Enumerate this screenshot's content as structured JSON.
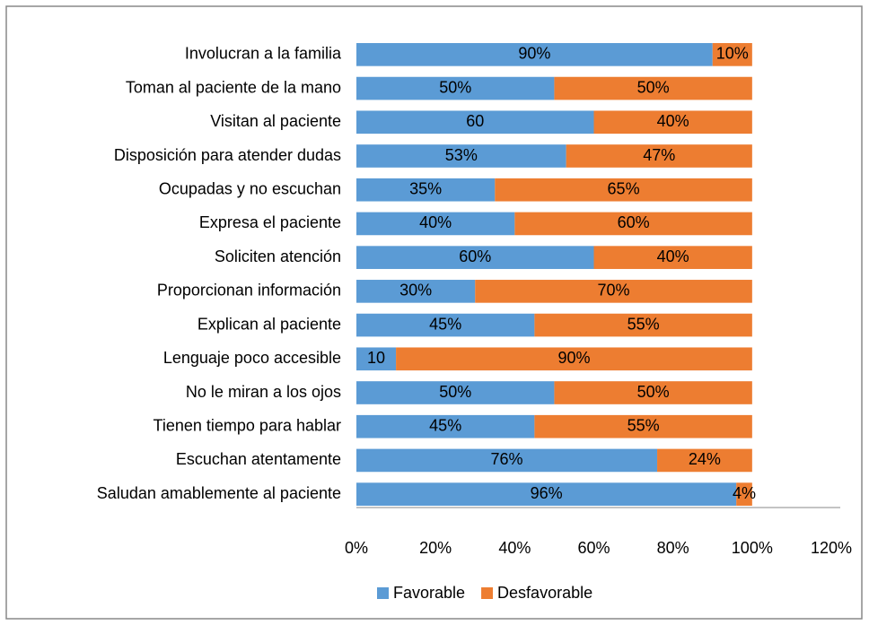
{
  "chart_data": {
    "type": "stacked_bar",
    "orientation": "horizontal",
    "categories": [
      "Involucran a la familia",
      "Toman al paciente de la mano",
      "Visitan al paciente",
      "Disposición para atender dudas",
      "Ocupadas y no escuchan",
      "Expresa el paciente",
      "Soliciten atención",
      "Proporcionan información",
      "Explican al paciente",
      "Lenguaje poco accesible",
      "No le miran a los ojos",
      "Tienen tiempo para hablar",
      "Escuchan atentamente",
      "Saludan amablemente al paciente"
    ],
    "series": [
      {
        "name": "Favorable",
        "color": "#5b9bd5",
        "values": [
          90,
          50,
          60,
          53,
          35,
          40,
          60,
          30,
          45,
          10,
          50,
          45,
          76,
          96
        ],
        "value_labels": [
          "90%",
          "50%",
          "60",
          "53%",
          "35%",
          "40%",
          "60%",
          "30%",
          "45%",
          "10",
          "50%",
          "45%",
          "76%",
          "96%"
        ]
      },
      {
        "name": "Desfavorable",
        "color": "#ed7d31",
        "values": [
          10,
          50,
          40,
          47,
          65,
          60,
          40,
          70,
          55,
          90,
          50,
          55,
          24,
          4
        ],
        "value_labels": [
          "10%",
          "50%",
          "40%",
          "47%",
          "65%",
          "60%",
          "40%",
          "70%",
          "55%",
          "90%",
          "50%",
          "55%",
          "24%",
          "4%"
        ]
      }
    ],
    "xlim": [
      0,
      120
    ],
    "xticks": [
      {
        "value": 0,
        "label": "0%"
      },
      {
        "value": 20,
        "label": "20%"
      },
      {
        "value": 40,
        "label": "40%"
      },
      {
        "value": 60,
        "label": "60%"
      },
      {
        "value": 80,
        "label": "80%"
      },
      {
        "value": 100,
        "label": "100%"
      },
      {
        "value": 120,
        "label": "120%"
      }
    ],
    "legend": "bottom"
  }
}
